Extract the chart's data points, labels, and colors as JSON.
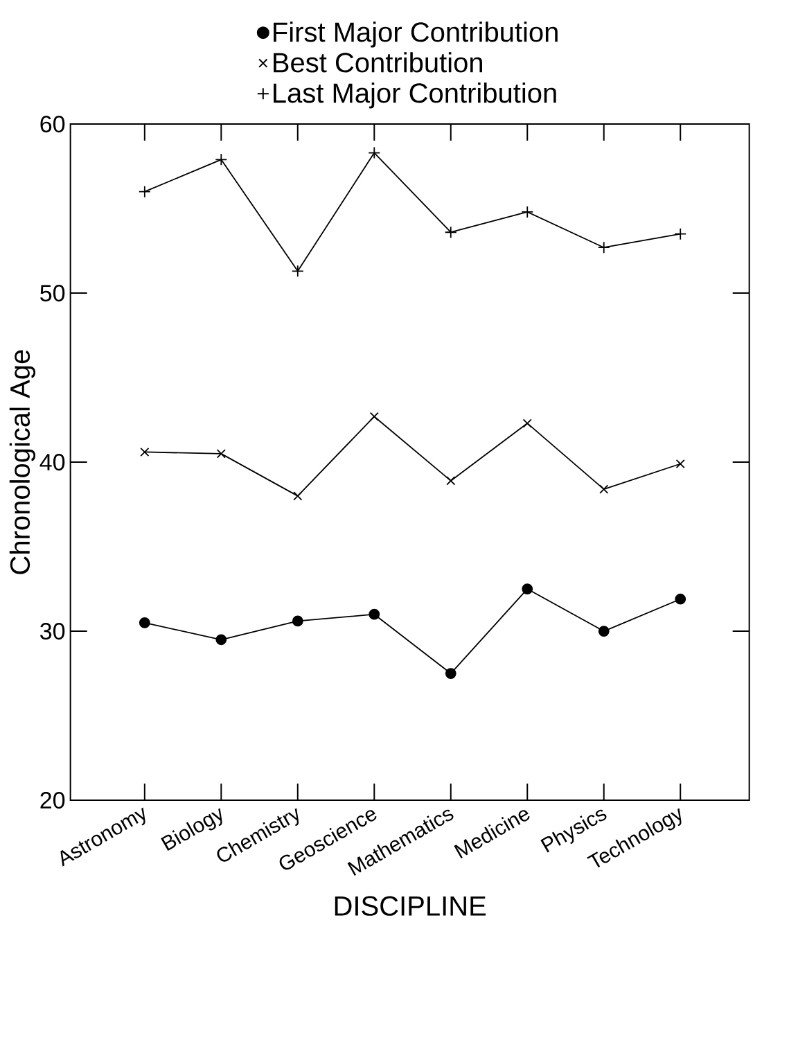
{
  "chart_data": {
    "type": "line",
    "xlabel": "DISCIPLINE",
    "ylabel": "Chronological Age",
    "categories": [
      "Astronomy",
      "Biology",
      "Chemistry",
      "Geoscience",
      "Mathematics",
      "Medicine",
      "Physics",
      "Technology"
    ],
    "series": [
      {
        "name": "First Major Contribution",
        "color": "#000000",
        "marker": "circle",
        "values": [
          30.5,
          29.5,
          30.6,
          31.0,
          27.5,
          32.5,
          30.0,
          31.9
        ]
      },
      {
        "name": "Best Contribution",
        "color": "#000000",
        "marker": "cross",
        "values": [
          40.6,
          40.5,
          38.0,
          42.7,
          38.9,
          42.3,
          38.4,
          39.9
        ]
      },
      {
        "name": "Last Major Contribution",
        "color": "#000000",
        "marker": "plus",
        "values": [
          56.0,
          57.9,
          51.3,
          58.3,
          53.6,
          54.8,
          52.7,
          53.5
        ]
      }
    ],
    "ylim": [
      20,
      60
    ],
    "yticks": [
      20,
      30,
      40,
      50,
      60
    ],
    "grid": false,
    "legend": "top",
    "line_style": "solid"
  }
}
